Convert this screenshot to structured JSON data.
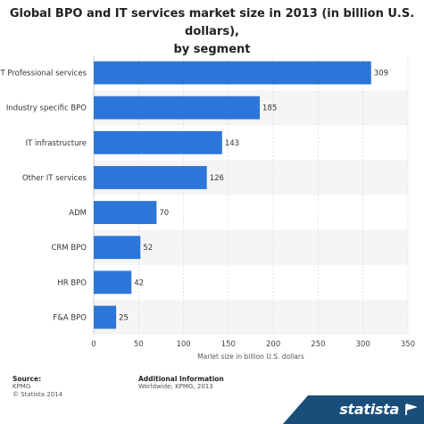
{
  "title_line1": "Global BPO and IT services market size in 2013 (in billion U.S. dollars),",
  "title_line2": "by segment",
  "chart_data": {
    "type": "bar",
    "orientation": "horizontal",
    "categories": [
      "IT Professional services",
      "Industry specific BPO",
      "IT infrastructure",
      "Other IT services",
      "ADM",
      "CRM BPO",
      "HR BPO",
      "F&A BPO"
    ],
    "values": [
      309,
      185,
      143,
      126,
      70,
      52,
      42,
      25
    ],
    "xlabel": "Marlet size in billion U.S. dollars",
    "xlim": [
      0,
      350
    ],
    "xticks": [
      0,
      50,
      100,
      150,
      200,
      250,
      300,
      350
    ],
    "bar_color": "#2d76d9",
    "band_color": "#f5f5f5",
    "grid": true
  },
  "footer": {
    "source_heading": "Source:",
    "source_lines": [
      "KPMG",
      "© Statista 2014"
    ],
    "info_heading": "Additional Information",
    "info_line": "Worldwide; KPMG; 2013"
  },
  "brand": {
    "name": "statista",
    "color": "#1a4d7a",
    "icon": "flag-icon"
  }
}
